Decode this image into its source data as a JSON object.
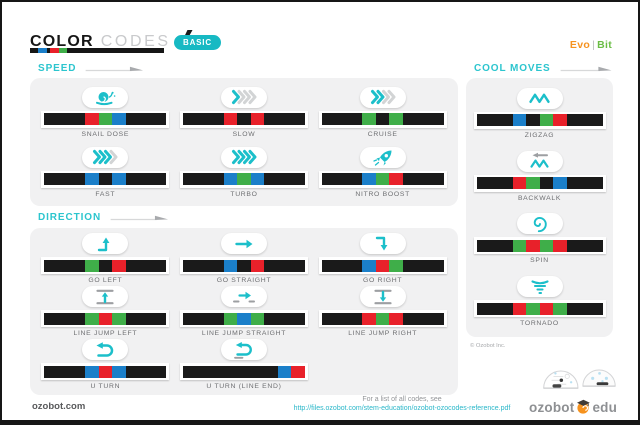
{
  "header": {
    "title_bold": "COLOR",
    "title_light": "CODES",
    "badge": "BASIC",
    "brand": {
      "evo": "Evo",
      "sep": "|",
      "bit": "Bit"
    }
  },
  "colors": {
    "red": "#e8212a",
    "green": "#3fae49",
    "blue": "#1b7fc9",
    "black": "#1a1a1a",
    "teal_accent": "#2cc5ce",
    "badge_teal": "#17b9c3",
    "panel_gray": "#f1f1f2"
  },
  "sections": [
    {
      "id": "speed",
      "label": "SPEED",
      "codes": [
        {
          "label": "SNAIL DOSE",
          "icon": "snail",
          "segments": [
            "K",
            "r",
            "g",
            "b",
            "K"
          ]
        },
        {
          "label": "SLOW",
          "icon": "chevrons-1",
          "segments": [
            "K",
            "r",
            "k",
            "r",
            "K"
          ]
        },
        {
          "label": "CRUISE",
          "icon": "chevrons-2",
          "segments": [
            "K",
            "g",
            "k",
            "g",
            "K"
          ]
        },
        {
          "label": "FAST",
          "icon": "chevrons-3",
          "segments": [
            "K",
            "b",
            "k",
            "b",
            "K"
          ]
        },
        {
          "label": "TURBO",
          "icon": "chevrons-4",
          "segments": [
            "K",
            "b",
            "g",
            "b",
            "K"
          ]
        },
        {
          "label": "NITRO BOOST",
          "icon": "rocket",
          "segments": [
            "K",
            "b",
            "g",
            "r",
            "K"
          ]
        }
      ]
    },
    {
      "id": "direction",
      "label": "DIRECTION",
      "codes": [
        {
          "label": "GO LEFT",
          "icon": "turn-left",
          "segments": [
            "K",
            "g",
            "k",
            "r",
            "K"
          ]
        },
        {
          "label": "GO STRAIGHT",
          "icon": "arrow-right",
          "segments": [
            "K",
            "b",
            "k",
            "r",
            "K"
          ]
        },
        {
          "label": "GO RIGHT",
          "icon": "turn-right",
          "segments": [
            "K",
            "b",
            "r",
            "g",
            "K"
          ]
        },
        {
          "label": "LINE JUMP LEFT",
          "icon": "line-jump-left",
          "segments": [
            "K",
            "g",
            "r",
            "g",
            "K"
          ]
        },
        {
          "label": "LINE JUMP STRAIGHT",
          "icon": "line-jump-straight",
          "segments": [
            "K",
            "g",
            "b",
            "g",
            "K"
          ]
        },
        {
          "label": "LINE JUMP RIGHT",
          "icon": "line-jump-right",
          "segments": [
            "K",
            "r",
            "g",
            "r",
            "K"
          ]
        },
        {
          "label": "U TURN",
          "icon": "u-turn",
          "segments": [
            "K",
            "b",
            "r",
            "b",
            "K"
          ]
        },
        {
          "label": "U TURN (LINE END)",
          "icon": "u-turn-line-end",
          "segments": [
            "K",
            "b",
            "r"
          ]
        }
      ]
    },
    {
      "id": "cool_moves",
      "label": "COOL MOVES",
      "codes": [
        {
          "label": "ZIGZAG",
          "icon": "zigzag",
          "segments": [
            "K",
            "b",
            "k",
            "g",
            "r",
            "K"
          ]
        },
        {
          "label": "BACKWALK",
          "icon": "backwalk",
          "segments": [
            "K",
            "r",
            "g",
            "k",
            "b",
            "K"
          ]
        },
        {
          "label": "SPIN",
          "icon": "spin",
          "segments": [
            "K",
            "g",
            "r",
            "g",
            "r",
            "K"
          ]
        },
        {
          "label": "TORNADO",
          "icon": "tornado",
          "segments": [
            "K",
            "r",
            "g",
            "r",
            "g",
            "K"
          ]
        }
      ]
    }
  ],
  "footer": {
    "site": "ozobot.com",
    "note": "For a list of all codes, see",
    "link": "http://files.ozobot.com/stem-education/ozobot-ozocodes-reference.pdf",
    "copyright": "© Ozobot Inc.",
    "logo_left": "ozobot",
    "logo_right": "edu"
  }
}
